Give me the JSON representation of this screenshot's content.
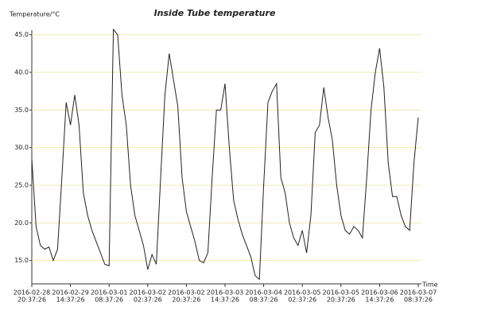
{
  "chart_data": {
    "type": "line",
    "title": "Inside Tube temperature",
    "y_label": "Temperature/°C",
    "x_label": "Time",
    "x": [
      "2016-02-28 20:37:26",
      "2016-02-28 22:37:26",
      "2016-02-29 00:37:26",
      "2016-02-29 02:37:26",
      "2016-02-29 04:37:26",
      "2016-02-29 06:37:26",
      "2016-02-29 08:37:26",
      "2016-02-29 10:37:26",
      "2016-02-29 12:37:26",
      "2016-02-29 14:37:26",
      "2016-02-29 16:37:26",
      "2016-02-29 18:37:26",
      "2016-02-29 20:37:26",
      "2016-02-29 22:37:26",
      "2016-03-01 00:37:26",
      "2016-03-01 02:37:26",
      "2016-03-01 04:37:26",
      "2016-03-01 06:37:26",
      "2016-03-01 08:37:26",
      "2016-03-01 10:37:26",
      "2016-03-01 12:37:26",
      "2016-03-01 14:37:26",
      "2016-03-01 16:37:26",
      "2016-03-01 18:37:26",
      "2016-03-01 20:37:26",
      "2016-03-01 22:37:26",
      "2016-03-02 00:37:26",
      "2016-03-02 02:37:26",
      "2016-03-02 04:37:26",
      "2016-03-02 06:37:26",
      "2016-03-02 08:37:26",
      "2016-03-02 10:37:26",
      "2016-03-02 12:37:26",
      "2016-03-02 14:37:26",
      "2016-03-02 16:37:26",
      "2016-03-02 18:37:26",
      "2016-03-02 20:37:26",
      "2016-03-02 22:37:26",
      "2016-03-03 00:37:26",
      "2016-03-03 02:37:26",
      "2016-03-03 04:37:26",
      "2016-03-03 06:37:26",
      "2016-03-03 08:37:26",
      "2016-03-03 10:37:26",
      "2016-03-03 12:37:26",
      "2016-03-03 14:37:26",
      "2016-03-03 16:37:26",
      "2016-03-03 18:37:26",
      "2016-03-03 20:37:26",
      "2016-03-03 22:37:26",
      "2016-03-04 00:37:26",
      "2016-03-04 02:37:26",
      "2016-03-04 04:37:26",
      "2016-03-04 06:37:26",
      "2016-03-04 08:37:26",
      "2016-03-04 10:37:26",
      "2016-03-04 12:37:26",
      "2016-03-04 14:37:26",
      "2016-03-04 16:37:26",
      "2016-03-04 18:37:26",
      "2016-03-04 20:37:26",
      "2016-03-04 22:37:26",
      "2016-03-05 00:37:26",
      "2016-03-05 02:37:26",
      "2016-03-05 04:37:26",
      "2016-03-05 06:37:26",
      "2016-03-05 08:37:26",
      "2016-03-05 10:37:26",
      "2016-03-05 12:37:26",
      "2016-03-05 14:37:26",
      "2016-03-05 16:37:26",
      "2016-03-05 18:37:26",
      "2016-03-05 20:37:26",
      "2016-03-05 22:37:26",
      "2016-03-06 00:37:26",
      "2016-03-06 02:37:26",
      "2016-03-06 04:37:26",
      "2016-03-06 06:37:26",
      "2016-03-06 08:37:26",
      "2016-03-06 10:37:26",
      "2016-03-06 12:37:26",
      "2016-03-06 14:37:26",
      "2016-03-06 16:37:26",
      "2016-03-06 18:37:26",
      "2016-03-06 20:37:26",
      "2016-03-06 22:37:26",
      "2016-03-07 00:37:26",
      "2016-03-07 02:37:26",
      "2016-03-07 04:37:26",
      "2016-03-07 06:37:26",
      "2016-03-07 08:37:26"
    ],
    "series": [
      {
        "color": "#222222",
        "values": [
          28.5,
          19.5,
          17,
          16.5,
          16.8,
          15,
          16.5,
          26,
          36,
          33,
          37,
          33,
          24,
          21,
          19,
          17.5,
          16,
          14.5,
          14.3,
          45.7,
          45,
          37,
          33,
          25,
          21,
          19,
          17,
          13.8,
          15.8,
          14.5,
          26,
          37,
          42.5,
          39,
          35.5,
          26,
          21.5,
          19.5,
          17.5,
          15,
          14.7,
          16,
          26,
          35,
          35,
          38.5,
          30,
          23,
          20.5,
          18.5,
          17,
          15.5,
          13,
          12.5,
          25,
          36,
          37.5,
          38.5,
          26,
          24,
          20,
          18,
          17,
          19,
          16,
          21,
          32,
          33,
          38,
          34,
          31,
          25,
          21,
          19,
          18.5,
          19.5,
          19,
          18,
          26,
          35,
          40,
          43.2,
          38,
          28,
          23.5,
          23.5,
          21,
          19.5,
          19,
          28,
          34
        ]
      }
    ],
    "xlim": [
      "2016-02-28 20:37:26",
      "2016-03-07 08:37:26"
    ],
    "xticks": [
      {
        "value": "2016-02-28 20:37:26",
        "label": [
          "2016-02-28",
          "20:37:26"
        ]
      },
      {
        "value": "2016-02-29 14:37:26",
        "label": [
          "2016-02-29",
          "14:37:26"
        ]
      },
      {
        "value": "2016-03-01 08:37:26",
        "label": [
          "2016-03-01",
          "08:37:26"
        ]
      },
      {
        "value": "2016-03-02 02:37:26",
        "label": [
          "2016-03-02",
          "02:37:26"
        ]
      },
      {
        "value": "2016-03-02 20:37:26",
        "label": [
          "2016-03-02",
          "20:37:26"
        ]
      },
      {
        "value": "2016-03-03 14:37:26",
        "label": [
          "2016-03-03",
          "14:37:26"
        ]
      },
      {
        "value": "2016-03-04 08:37:26",
        "label": [
          "2016-03-04",
          "08:37:26"
        ]
      },
      {
        "value": "2016-03-05 02:37:26",
        "label": [
          "2016-03-05",
          "02:37:26"
        ]
      },
      {
        "value": "2016-03-05 20:37:26",
        "label": [
          "2016-03-05",
          "20:37:26"
        ]
      },
      {
        "value": "2016-03-06 14:37:26",
        "label": [
          "2016-03-06",
          "14:37:26"
        ]
      },
      {
        "value": "2016-03-07 08:37:26",
        "label": [
          "2016-03-07",
          "08:37:26"
        ]
      }
    ],
    "ylim": [
      11.9,
      45.6
    ],
    "yticks": [
      {
        "value": 15,
        "label": "15.0"
      },
      {
        "value": 20,
        "label": "20.0"
      },
      {
        "value": 25,
        "label": "25.0"
      },
      {
        "value": 30,
        "label": "30.0"
      },
      {
        "value": 35,
        "label": "35.0"
      },
      {
        "value": 40,
        "label": "40.0"
      },
      {
        "value": 45,
        "label": "45.0"
      }
    ],
    "grid": true,
    "grid_color": "#f0ebb0"
  }
}
